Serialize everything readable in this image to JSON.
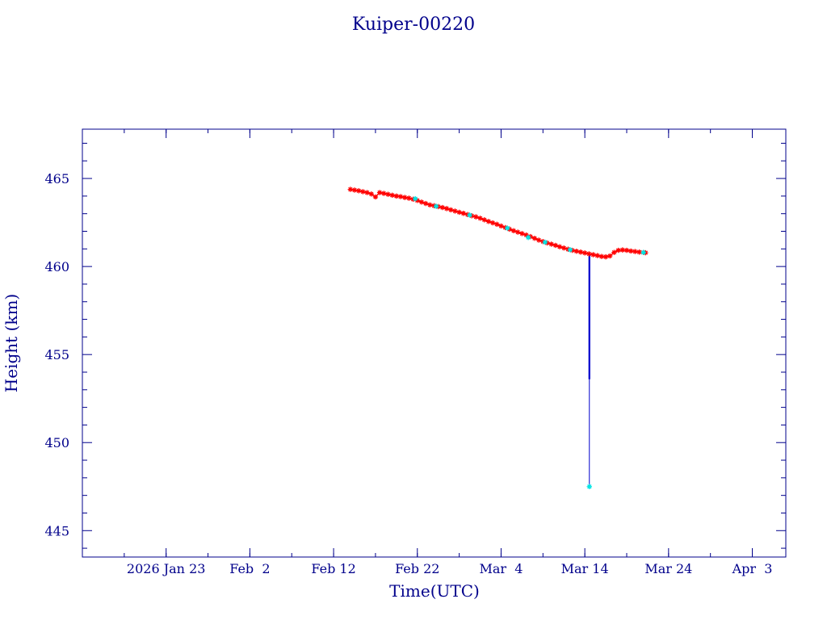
{
  "chart_data": {
    "type": "scatter",
    "title": "Kuiper-00220",
    "xlabel": "Time(UTC)",
    "ylabel": "Height (km)",
    "x_ticks": [
      "2026 Jan 23",
      "Feb  2",
      "Feb 12",
      "Feb 22",
      "Mar  4",
      "Mar 14",
      "Mar 24",
      "Apr  3"
    ],
    "x_tick_dates": [
      "2026-01-23",
      "2026-02-02",
      "2026-02-12",
      "2026-02-22",
      "2026-03-04",
      "2026-03-14",
      "2026-03-24",
      "2026-04-03"
    ],
    "xlim": [
      "2026-01-13",
      "2026-04-07"
    ],
    "y_ticks": [
      "445",
      "450",
      "455",
      "460",
      "465"
    ],
    "ylim": [
      443.5,
      467.8
    ],
    "grid": false,
    "colors": {
      "axes": "#00008b",
      "series_main": "#ff0000",
      "series_alt": "#00e5e5",
      "line": "#0000cc"
    },
    "series": [
      {
        "marker": "star",
        "color": "#ff0000",
        "points": [
          [
            "2026-02-14T00:00",
            464.38
          ],
          [
            "2026-02-14T12:00",
            464.34
          ],
          [
            "2026-02-15T00:00",
            464.3
          ],
          [
            "2026-02-15T12:00",
            464.25
          ],
          [
            "2026-02-16T00:00",
            464.2
          ],
          [
            "2026-02-16T12:00",
            464.12
          ],
          [
            "2026-02-17T00:00",
            463.95
          ],
          [
            "2026-02-17T12:00",
            464.2
          ],
          [
            "2026-02-18T00:00",
            464.15
          ],
          [
            "2026-02-18T12:00",
            464.1
          ],
          [
            "2026-02-19T00:00",
            464.05
          ],
          [
            "2026-02-19T12:00",
            464.0
          ],
          [
            "2026-02-20T00:00",
            463.97
          ],
          [
            "2026-02-20T12:00",
            463.92
          ],
          [
            "2026-02-21T00:00",
            463.88
          ],
          [
            "2026-02-21T12:00",
            463.82
          ],
          [
            "2026-02-22T00:00",
            463.75
          ],
          [
            "2026-02-22T12:00",
            463.66
          ],
          [
            "2026-02-23T00:00",
            463.58
          ],
          [
            "2026-02-23T12:00",
            463.5
          ],
          [
            "2026-02-24T00:00",
            463.45
          ],
          [
            "2026-02-24T12:00",
            463.4
          ],
          [
            "2026-02-25T00:00",
            463.35
          ],
          [
            "2026-02-25T12:00",
            463.29
          ],
          [
            "2026-02-26T00:00",
            463.22
          ],
          [
            "2026-02-26T12:00",
            463.15
          ],
          [
            "2026-02-27T00:00",
            463.08
          ],
          [
            "2026-02-27T12:00",
            463.02
          ],
          [
            "2026-02-28T00:00",
            462.95
          ],
          [
            "2026-02-28T12:00",
            462.88
          ],
          [
            "2026-03-01T00:00",
            462.82
          ],
          [
            "2026-03-01T12:00",
            462.74
          ],
          [
            "2026-03-02T00:00",
            462.65
          ],
          [
            "2026-03-02T12:00",
            462.56
          ],
          [
            "2026-03-03T00:00",
            462.48
          ],
          [
            "2026-03-03T12:00",
            462.4
          ],
          [
            "2026-03-04T00:00",
            462.3
          ],
          [
            "2026-03-04T12:00",
            462.21
          ],
          [
            "2026-03-05T00:00",
            462.12
          ],
          [
            "2026-03-05T12:00",
            462.03
          ],
          [
            "2026-03-06T00:00",
            461.95
          ],
          [
            "2026-03-06T12:00",
            461.87
          ],
          [
            "2026-03-07T00:00",
            461.79
          ],
          [
            "2026-03-07T12:00",
            461.7
          ],
          [
            "2026-03-08T00:00",
            461.6
          ],
          [
            "2026-03-08T12:00",
            461.5
          ],
          [
            "2026-03-09T00:00",
            461.42
          ],
          [
            "2026-03-09T12:00",
            461.34
          ],
          [
            "2026-03-10T00:00",
            461.27
          ],
          [
            "2026-03-10T12:00",
            461.2
          ],
          [
            "2026-03-11T00:00",
            461.12
          ],
          [
            "2026-03-11T12:00",
            461.05
          ],
          [
            "2026-03-12T00:00",
            460.98
          ],
          [
            "2026-03-12T12:00",
            460.92
          ],
          [
            "2026-03-13T00:00",
            460.87
          ],
          [
            "2026-03-13T12:00",
            460.82
          ],
          [
            "2026-03-14T00:00",
            460.77
          ],
          [
            "2026-03-14T12:00",
            460.72
          ],
          [
            "2026-03-15T00:00",
            460.67
          ],
          [
            "2026-03-15T12:00",
            460.62
          ],
          [
            "2026-03-16T00:00",
            460.57
          ],
          [
            "2026-03-16T12:00",
            460.55
          ],
          [
            "2026-03-17T00:00",
            460.6
          ],
          [
            "2026-03-17T12:00",
            460.8
          ],
          [
            "2026-03-18T00:00",
            460.92
          ],
          [
            "2026-03-18T12:00",
            460.94
          ],
          [
            "2026-03-19T00:00",
            460.92
          ],
          [
            "2026-03-19T12:00",
            460.88
          ],
          [
            "2026-03-20T00:00",
            460.85
          ],
          [
            "2026-03-20T12:00",
            460.82
          ],
          [
            "2026-03-21T00:00",
            460.8
          ],
          [
            "2026-03-21T06:00",
            460.78
          ]
        ]
      },
      {
        "marker": "star",
        "color": "#00e5e5",
        "points": [
          [
            "2026-02-21T18:00",
            463.85
          ],
          [
            "2026-02-24T06:00",
            463.42
          ],
          [
            "2026-02-28T06:00",
            462.92
          ],
          [
            "2026-03-04T18:00",
            462.18
          ],
          [
            "2026-03-07T06:00",
            461.65
          ],
          [
            "2026-03-09T06:00",
            461.38
          ],
          [
            "2026-03-12T06:00",
            460.95
          ],
          [
            "2026-03-14T13:00",
            447.5
          ],
          [
            "2026-03-21T00:00",
            460.8
          ]
        ]
      }
    ],
    "drop_line": {
      "x": "2026-03-14T13:00",
      "from": 460.65,
      "to": 447.5,
      "thick_to": 453.6
    }
  }
}
